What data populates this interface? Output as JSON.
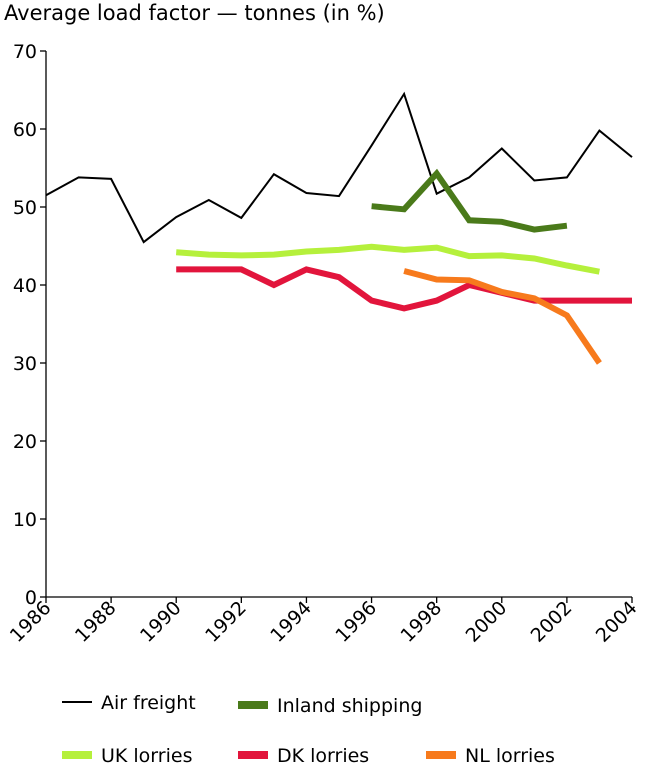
{
  "chart_data": {
    "type": "line",
    "title": "Average load factor — tonnes (in %)",
    "xlabel": "",
    "ylabel": "",
    "xlim": [
      1986,
      2004
    ],
    "ylim": [
      0,
      70
    ],
    "x_ticks": [
      "1986",
      "1988",
      "1990",
      "1992",
      "1994",
      "1996",
      "1998",
      "2000",
      "2002",
      "2004"
    ],
    "y_ticks": [
      "0",
      "10",
      "20",
      "30",
      "40",
      "50",
      "60",
      "70"
    ],
    "grid": false,
    "legend_position": "bottom",
    "series": [
      {
        "name": "Air freight",
        "color": "#000000",
        "x": [
          1986,
          1987,
          1988,
          1989,
          1990,
          1991,
          1992,
          1993,
          1994,
          1995,
          1996,
          1997,
          1998,
          1999,
          2000,
          2001,
          2002,
          2003,
          2004
        ],
        "values": [
          51.5,
          53.8,
          53.6,
          45.5,
          48.7,
          50.9,
          48.6,
          54.2,
          51.8,
          51.4,
          57.9,
          64.5,
          51.7,
          53.8,
          57.5,
          53.4,
          53.8,
          59.8,
          56.4
        ]
      },
      {
        "name": "Inland shipping",
        "color": "#4a7a1a",
        "x": [
          1996,
          1997,
          1998,
          1999,
          2000,
          2001,
          2002
        ],
        "values": [
          50.1,
          49.7,
          54.3,
          48.3,
          48.1,
          47.1,
          47.6
        ]
      },
      {
        "name": "UK lorries",
        "color": "#b5f03c",
        "x": [
          1990,
          1991,
          1992,
          1993,
          1994,
          1995,
          1996,
          1997,
          1998,
          1999,
          2000,
          2001,
          2002,
          2003
        ],
        "values": [
          44.2,
          43.9,
          43.8,
          43.9,
          44.3,
          44.5,
          44.9,
          44.5,
          44.8,
          43.7,
          43.8,
          43.4,
          42.5,
          41.7
        ]
      },
      {
        "name": "DK lorries",
        "color": "#e2153c",
        "x": [
          1990,
          1991,
          1992,
          1993,
          1994,
          1995,
          1996,
          1997,
          1998,
          1999,
          2000,
          2001,
          2002,
          2003,
          2004
        ],
        "values": [
          42,
          42,
          42,
          40,
          42,
          41,
          38,
          37,
          38,
          40,
          39,
          38,
          38,
          38,
          38
        ]
      },
      {
        "name": "NL lorries",
        "color": "#f77a1c",
        "x": [
          1997,
          1998,
          1999,
          2000,
          2001,
          2002,
          2003
        ],
        "values": [
          41.8,
          40.7,
          40.6,
          39.1,
          38.3,
          36.1,
          30
        ]
      }
    ]
  }
}
